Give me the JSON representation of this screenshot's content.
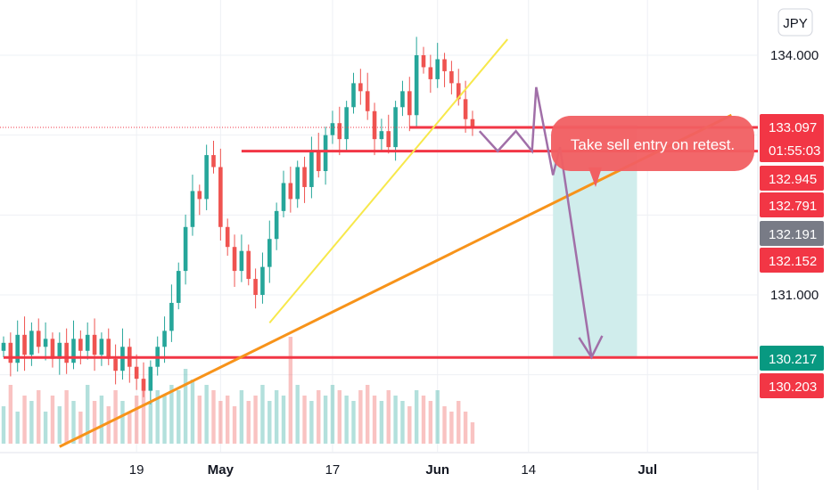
{
  "currency_label": "JPY",
  "colors": {
    "up": "#26a69a",
    "down": "#ef5350",
    "level_line": "#f23645",
    "trend_short": "#f7e84b",
    "trend_long": "#f7931a",
    "projection": "#a16fa8",
    "callout": "#f15f62",
    "target_zone": "#cdeceb",
    "stop_zone": "#fbd3d2",
    "tag_red": "#f23645",
    "tag_green": "#089981",
    "tag_gray": "#787b86"
  },
  "annotation": {
    "text": "Take sell entry on retest."
  },
  "chart_data": {
    "type": "candlestick",
    "instrument_currency": "JPY",
    "x_axis": {
      "ticks": [
        {
          "label": "19",
          "day": 19,
          "bold": false
        },
        {
          "label": "May",
          "day": 31,
          "bold": true
        },
        {
          "label": "17",
          "day": 47,
          "bold": false
        },
        {
          "label": "Jun",
          "day": 62,
          "bold": true
        },
        {
          "label": "14",
          "day": 75,
          "bold": false
        },
        {
          "label": "Jul",
          "day": 92,
          "bold": true
        }
      ]
    },
    "y_axis": {
      "range": [
        129.1,
        134.7
      ],
      "ticks": [
        {
          "label": "134.000",
          "value": 134.0
        },
        {
          "label": "131.000",
          "value": 131.0
        }
      ]
    },
    "price_tags": [
      {
        "label": "133.097",
        "value": 133.097,
        "color": "red",
        "countdown": "01:55:03"
      },
      {
        "label": "132.945",
        "value": 132.945,
        "color": "red"
      },
      {
        "label": "132.791",
        "value": 132.791,
        "color": "red"
      },
      {
        "label": "132.191",
        "value": 132.191,
        "color": "gray"
      },
      {
        "label": "132.152",
        "value": 132.152,
        "color": "red"
      },
      {
        "label": "130.217",
        "value": 130.217,
        "color": "green"
      },
      {
        "label": "130.203",
        "value": 130.203,
        "color": "red"
      }
    ],
    "current_price": 133.097,
    "horizontal_levels": [
      {
        "value": 133.097,
        "from_day": 58
      },
      {
        "value": 132.8,
        "from_day": 34
      },
      {
        "value": 130.217,
        "from_day": 0
      }
    ],
    "trend_lines": [
      {
        "name": "short",
        "from": [
          38,
          130.65
        ],
        "to": [
          72,
          134.2
        ]
      },
      {
        "name": "long",
        "from": [
          8,
          129.1
        ],
        "to": [
          104,
          133.25
        ]
      }
    ],
    "projection_path": [
      [
        68,
        133.05
      ],
      [
        70.6,
        132.8
      ],
      [
        73.2,
        133.05
      ],
      [
        75.5,
        132.8
      ],
      [
        76.1,
        133.6
      ],
      [
        78.5,
        132.5
      ],
      [
        79.5,
        132.85
      ],
      [
        84.0,
        130.22
      ]
    ],
    "position": {
      "start_day": 78.5,
      "end_day": 90.5,
      "entry": 132.791,
      "stop": 133.13,
      "target": 130.217
    },
    "candles": {
      "start_day": 0,
      "spacing_days": 1,
      "count": 68,
      "closes": [
        130.4,
        130.15,
        130.5,
        130.25,
        130.55,
        130.35,
        130.45,
        130.2,
        130.4,
        130.15,
        130.45,
        130.3,
        130.5,
        130.25,
        130.45,
        130.2,
        130.05,
        130.35,
        130.1,
        129.95,
        129.8,
        130.1,
        130.35,
        130.55,
        130.9,
        131.3,
        131.85,
        132.3,
        132.2,
        132.75,
        132.6,
        131.85,
        131.6,
        131.3,
        131.55,
        131.2,
        131.0,
        131.35,
        131.7,
        132.05,
        132.4,
        132.2,
        132.6,
        132.35,
        132.8,
        132.55,
        133.0,
        133.15,
        132.95,
        133.35,
        133.65,
        133.55,
        133.3,
        132.95,
        133.05,
        132.85,
        133.35,
        133.55,
        133.25,
        134.0,
        133.85,
        133.7,
        133.95,
        133.8,
        133.65,
        133.45,
        133.2,
        133.1
      ]
    },
    "volume": {
      "max_height_note": "relative",
      "values": [
        0.35,
        0.55,
        0.3,
        0.45,
        0.4,
        0.5,
        0.3,
        0.45,
        0.35,
        0.5,
        0.4,
        0.3,
        0.55,
        0.4,
        0.45,
        0.35,
        0.5,
        0.4,
        0.3,
        0.45,
        0.6,
        0.4,
        0.5,
        0.45,
        0.55,
        0.5,
        0.7,
        0.6,
        0.45,
        0.55,
        0.5,
        0.4,
        0.45,
        0.35,
        0.5,
        0.4,
        0.45,
        0.55,
        0.4,
        0.5,
        0.45,
        1.0,
        0.55,
        0.45,
        0.4,
        0.5,
        0.45,
        0.55,
        0.5,
        0.45,
        0.4,
        0.5,
        0.55,
        0.45,
        0.4,
        0.5,
        0.45,
        0.4,
        0.35,
        0.5,
        0.45,
        0.4,
        0.5,
        0.35,
        0.3,
        0.4,
        0.3,
        0.2
      ]
    }
  }
}
